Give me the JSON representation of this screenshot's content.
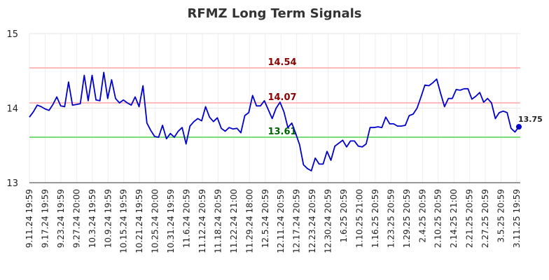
{
  "chart_data": {
    "type": "line",
    "title": "RFMZ Long Term Signals",
    "xlabel": "",
    "ylabel": "",
    "ylim": [
      13,
      15
    ],
    "yticks": [
      "13",
      "14",
      "15"
    ],
    "x_tick_labels": [
      "9.11.24 19:59",
      "9.17.24 19:59",
      "9.23.24 19:59",
      "9.27.24 20:00",
      "10.3.24 19:59",
      "10.9.24 19:59",
      "10.15.24 19:59",
      "10.21.24 19:59",
      "10.25.24 20:00",
      "10.31.24 19:59",
      "11.6.24 20:59",
      "11.12.24 20:59",
      "11.18.24 20:59",
      "11.22.24 21:00",
      "11.29.24 18:00",
      "12.5.24 20:59",
      "12.11.24 20:59",
      "12.17.24 20:59",
      "12.23.24 20:59",
      "12.30.24 20:59",
      "1.6.25 20:59",
      "1.10.25 21:00",
      "1.16.25 20:59",
      "1.23.25 20:59",
      "1.29.25 20:59",
      "2.4.25 20:59",
      "2.10.25 20:59",
      "2.14.25 21:00",
      "2.21.25 20:59",
      "2.27.25 20:59",
      "3.5.25 20:59",
      "3.11.25 19:59"
    ],
    "grid": true,
    "series": [
      {
        "color": "#0000cc",
        "values": [
          13.88,
          13.95,
          14.04,
          14.02,
          13.99,
          13.97,
          14.05,
          14.15,
          14.03,
          14.02,
          14.35,
          14.04,
          14.05,
          14.06,
          14.44,
          14.1,
          14.44,
          14.11,
          14.1,
          14.48,
          14.13,
          14.38,
          14.13,
          14.07,
          14.11,
          14.07,
          14.04,
          14.15,
          14.02,
          14.3,
          13.8,
          13.7,
          13.62,
          13.61,
          13.77,
          13.59,
          13.66,
          13.61,
          13.69,
          13.74,
          13.52,
          13.76,
          13.82,
          13.86,
          13.83,
          14.02,
          13.88,
          13.82,
          13.87,
          13.73,
          13.69,
          13.74,
          13.72,
          13.73,
          13.67,
          13.9,
          13.94,
          14.17,
          14.03,
          14.03,
          14.1,
          13.98,
          13.86,
          14.0,
          14.08,
          13.95,
          13.74,
          13.8,
          13.66,
          13.51,
          13.24,
          13.19,
          13.16,
          13.33,
          13.25,
          13.25,
          13.42,
          13.3,
          13.49,
          13.53,
          13.57,
          13.48,
          13.56,
          13.56,
          13.49,
          13.48,
          13.52,
          13.74,
          13.74,
          13.75,
          13.74,
          13.88,
          13.79,
          13.79,
          13.76,
          13.76,
          13.77,
          13.9,
          13.92,
          14.0,
          14.15,
          14.31,
          14.3,
          14.34,
          14.39,
          14.2,
          14.02,
          14.13,
          14.13,
          14.25,
          14.24,
          14.26,
          14.26,
          14.12,
          14.16,
          14.21,
          14.08,
          14.13,
          14.07,
          13.86,
          13.94,
          13.96,
          13.94,
          13.73,
          13.68,
          13.75
        ]
      }
    ],
    "reference_lines": [
      {
        "value": 14.54,
        "label": "14.54",
        "color": "#ffbbbb",
        "label_color": "#8b0000"
      },
      {
        "value": 14.07,
        "label": "14.07",
        "color": "#ffbbbb",
        "label_color": "#8b0000"
      },
      {
        "value": 13.61,
        "label": "13.61",
        "color": "#77dd77",
        "label_color": "#006400"
      }
    ],
    "last_value_label": "13.75"
  }
}
